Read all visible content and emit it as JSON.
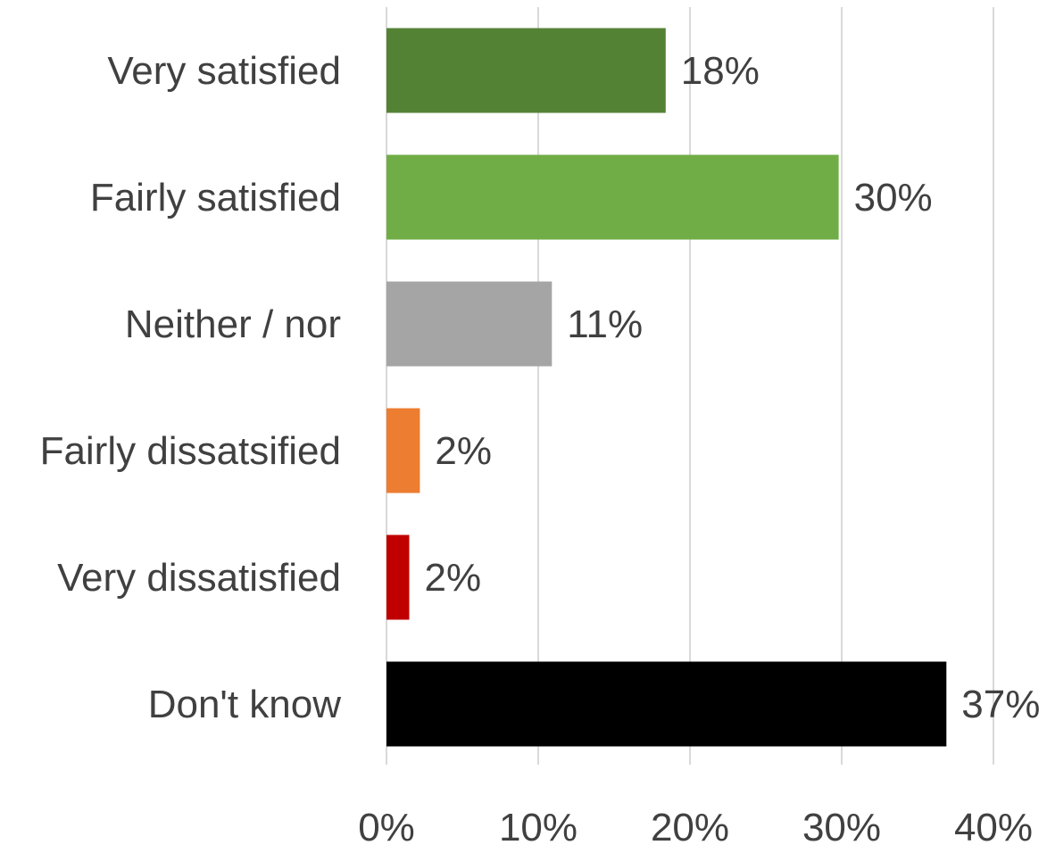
{
  "chart_data": {
    "type": "bar",
    "orientation": "horizontal",
    "title": "",
    "xlabel": "",
    "ylabel": "",
    "categories": [
      "Very satisfied",
      "Fairly satisfied",
      "Neither / nor",
      "Fairly dissatsified",
      "Very dissatisfied",
      "Don't know"
    ],
    "values": [
      18.4,
      29.8,
      10.9,
      2.2,
      1.5,
      36.9
    ],
    "data_labels": [
      "18%",
      "30%",
      "11%",
      "2%",
      "2%",
      "37%"
    ],
    "colors": [
      "#548235",
      "#70ad47",
      "#a5a5a5",
      "#ed7d31",
      "#c00000",
      "#000000"
    ],
    "xlim": [
      0,
      40
    ],
    "x_ticks": [
      0,
      10,
      20,
      30,
      40
    ],
    "x_tick_labels": [
      "0%",
      "10%",
      "20%",
      "30%",
      "40%"
    ],
    "grid": true,
    "legend": "none"
  }
}
